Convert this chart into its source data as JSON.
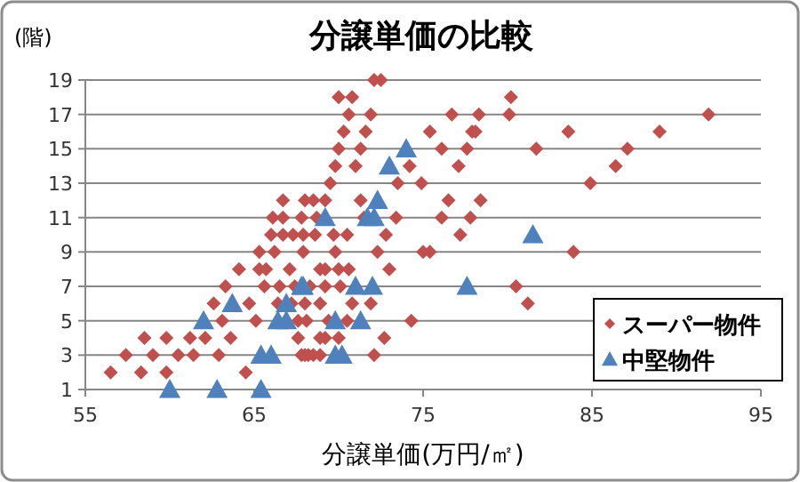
{
  "chart_data": {
    "type": "scatter",
    "title": "分譲単価の比較",
    "xlabel": "分譲単価(万円/㎡)",
    "ylabel": "(階)",
    "xlim": [
      55,
      95
    ],
    "xticks": [
      55,
      65,
      75,
      85,
      95
    ],
    "ylim": [
      1,
      19
    ],
    "yticks": [
      1,
      3,
      5,
      7,
      9,
      11,
      13,
      15,
      17,
      19
    ],
    "grid": "y",
    "legend": "bottom right",
    "series": [
      {
        "name": "スーパー物件",
        "color": "#c0504d",
        "marker": "diamond",
        "x": [
          56.5,
          57.4,
          58.3,
          58.5,
          59.0,
          59.8,
          59.8,
          60.5,
          61.2,
          61.4,
          62.1,
          62.6,
          62.9,
          63.1,
          63.3,
          63.6,
          64.1,
          64.5,
          64.7,
          65.1,
          65.3,
          65.3,
          65.6,
          65.7,
          66.0,
          66.1,
          66.2,
          66.4,
          66.5,
          66.7,
          66.7,
          66.7,
          67.1,
          67.2,
          67.3,
          67.4,
          67.6,
          67.8,
          67.8,
          67.9,
          67.9,
          68.0,
          68.0,
          68.0,
          67.6,
          72.1,
          72.5,
          70.0,
          70.8,
          80.2,
          70.6,
          71.9,
          76.7,
          78.3,
          80.1,
          70.3,
          71.6,
          75.4,
          77.9,
          78.1,
          70.0,
          71.3,
          76.1,
          77.6,
          81.7,
          69.8,
          71.0,
          74.2,
          77.1,
          69.5,
          73.5,
          74.9,
          68.5,
          69.2,
          71.3,
          76.5,
          78.4,
          68.7,
          71.5,
          73.4,
          76.1,
          77.8,
          68.6,
          69.7,
          70.5,
          72.8,
          77.2,
          69.8,
          72.3,
          75.0,
          75.4,
          68.9,
          69.2,
          70.0,
          70.6,
          73.0,
          68.3,
          69.2,
          70.1,
          80.5,
          68.9,
          70.8,
          71.9,
          81.2,
          68.1,
          69.4,
          70.5,
          74.3,
          68.9,
          69.2,
          70.0,
          72.7,
          68.2,
          68.5,
          68.9,
          72.1,
          91.9,
          83.6,
          89.0,
          87.1,
          86.4,
          84.9,
          83.9
        ],
        "values": [
          2,
          3,
          2,
          4,
          3,
          4,
          2,
          3,
          4,
          3,
          4,
          6,
          3,
          5,
          7,
          4,
          8,
          2,
          6,
          5,
          9,
          8,
          7,
          8,
          10,
          11,
          9,
          6,
          7,
          11,
          10,
          12,
          8,
          6,
          10,
          7,
          5,
          11,
          3,
          9,
          10,
          12,
          3,
          6,
          4,
          19,
          19,
          18,
          18,
          18,
          17,
          17,
          17,
          17,
          17,
          16,
          16,
          16,
          16,
          16,
          15,
          15,
          15,
          15,
          15,
          14,
          14,
          14,
          14,
          13,
          13,
          13,
          12,
          12,
          12,
          12,
          12,
          11,
          11,
          11,
          11,
          11,
          10,
          10,
          10,
          10,
          10,
          9,
          9,
          9,
          9,
          8,
          8,
          8,
          8,
          8,
          7,
          7,
          7,
          7,
          6,
          6,
          6,
          6,
          5,
          5,
          5,
          5,
          4,
          4,
          4,
          4,
          3,
          3,
          3,
          3,
          17,
          16,
          16,
          15,
          14,
          13,
          9
        ]
      },
      {
        "name": "中堅物件",
        "color": "#4f81bd",
        "marker": "triangle",
        "x": [
          60.0,
          62.8,
          65.4,
          62.0,
          63.7,
          65.4,
          66.0,
          66.4,
          66.9,
          66.9,
          67.8,
          74.0,
          73.0,
          72.3,
          69.2,
          71.7,
          72.1,
          81.5,
          67.9,
          71.0,
          72.0,
          77.6,
          69.8,
          71.3,
          69.8,
          70.2
        ],
        "values": [
          1,
          1,
          1,
          5,
          6,
          3,
          3,
          5,
          6,
          5,
          7,
          15,
          14,
          12,
          11,
          11,
          11,
          10,
          7,
          7,
          7,
          7,
          5,
          5,
          3,
          3
        ]
      }
    ]
  }
}
